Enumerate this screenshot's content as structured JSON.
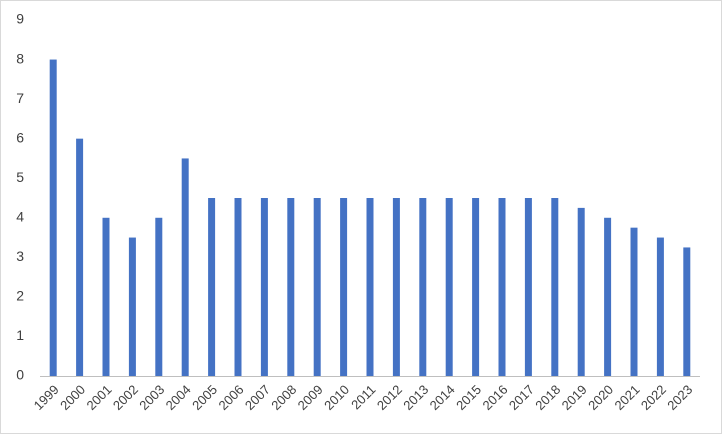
{
  "chart_data": {
    "type": "bar",
    "categories": [
      "1999",
      "2000",
      "2001",
      "2002",
      "2003",
      "2004",
      "2005",
      "2006",
      "2007",
      "2008",
      "2009",
      "2010",
      "2011",
      "2012",
      "2013",
      "2014",
      "2015",
      "2016",
      "2017",
      "2018",
      "2019",
      "2020",
      "2021",
      "2022",
      "2023"
    ],
    "values": [
      8,
      6,
      4,
      3.5,
      4,
      5.5,
      4.5,
      4.5,
      4.5,
      4.5,
      4.5,
      4.5,
      4.5,
      4.5,
      4.5,
      4.5,
      4.5,
      4.5,
      4.5,
      4.5,
      4.25,
      4,
      3.75,
      3.5,
      3.25
    ],
    "color": "#4472c4",
    "ylim": [
      0,
      9
    ],
    "yticks": [
      0,
      1,
      2,
      3,
      4,
      5,
      6,
      7,
      8,
      9
    ],
    "grid": false
  }
}
